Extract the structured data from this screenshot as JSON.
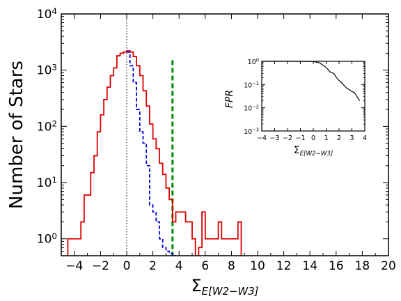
{
  "chart_data": [
    {
      "type": "histogram",
      "ylabel": "Number of Stars",
      "xlabel": {
        "main": "Σ",
        "sub": "E[W2−W3]"
      },
      "xlim": [
        -5,
        20
      ],
      "ylim_log": [
        0.5,
        10000
      ],
      "yscale": "log",
      "xticks": [
        -4,
        -2,
        0,
        2,
        4,
        6,
        8,
        10,
        12,
        14,
        16,
        18,
        20
      ],
      "xtick_labels": [
        "−4",
        "−2",
        "0",
        "2",
        "4",
        "6",
        "8",
        "10",
        "12",
        "14",
        "16",
        "18",
        "20"
      ],
      "yticks": [
        1,
        10,
        100,
        1000,
        10000
      ],
      "ytick_labels": [
        {
          "b": "10",
          "e": "0"
        },
        {
          "b": "10",
          "e": "1"
        },
        {
          "b": "10",
          "e": "2"
        },
        {
          "b": "10",
          "e": "3"
        },
        {
          "b": "10",
          "e": "4"
        }
      ],
      "bin_width": 0.25,
      "series": [
        {
          "style": "red-solid-step",
          "color": "#dd0000",
          "bins_start": -4.5,
          "counts": [
            1,
            1,
            1,
            1,
            2,
            6,
            6,
            15,
            30,
            80,
            160,
            300,
            500,
            800,
            1100,
            1800,
            2000,
            2100,
            2200,
            2100,
            1750,
            1200,
            800,
            430,
            230,
            110,
            60,
            40,
            22,
            14,
            8,
            5,
            2,
            3,
            3,
            3,
            2,
            2,
            1,
            0,
            0.7,
            3,
            1,
            1,
            1,
            1,
            2,
            1,
            1,
            1,
            1,
            1,
            2,
            0,
            0,
            0,
            0,
            0,
            0,
            0,
            0,
            0,
            0,
            0,
            0,
            0,
            0,
            0,
            0,
            0,
            0,
            0,
            0,
            0,
            0,
            0,
            0,
            0,
            0,
            0,
            0,
            0,
            0,
            0,
            0,
            0,
            0,
            0,
            0,
            0,
            0,
            0,
            0,
            0,
            0,
            0,
            0,
            0,
            0,
            0,
            0,
            0,
            0,
            0,
            0,
            0,
            0,
            0
          ]
        },
        {
          "style": "blue-dashed-step",
          "color": "#0000dd",
          "bins_start": 0,
          "counts": [
            2100,
            1200,
            600,
            200,
            80,
            50,
            20,
            4,
            3,
            2,
            1,
            0.7,
            0.6,
            0.55,
            0.5
          ]
        }
      ],
      "annotations": [
        {
          "type": "vline",
          "x": 0,
          "style": "black-dotted"
        },
        {
          "type": "vline",
          "x": 3.5,
          "style": "green-dashed",
          "color": "#008800",
          "y_top": 1500
        }
      ]
    },
    {
      "type": "line",
      "inset": true,
      "ylabel": "FPR",
      "xlabel": {
        "main": "Σ",
        "sub": "E[W2−W3]"
      },
      "xlim": [
        -4,
        4
      ],
      "ylim_log": [
        0.001,
        1
      ],
      "xticks": [
        -4,
        -3,
        -2,
        -1,
        0,
        1,
        2,
        3,
        4
      ],
      "xtick_labels": [
        "−4",
        "−3",
        "−2",
        "−1",
        "0",
        "1",
        "2",
        "3",
        "4"
      ],
      "yticks": [
        0.001,
        0.01,
        0.1,
        1
      ],
      "ytick_labels": [
        {
          "b": "10",
          "e": "−3"
        },
        {
          "b": "10",
          "e": "−2"
        },
        {
          "b": "10",
          "e": "−1"
        },
        {
          "b": "10",
          "e": "0"
        }
      ],
      "x": [
        -4,
        -3,
        -2,
        -1,
        0,
        0.5,
        1.0,
        1.3,
        1.6,
        1.8,
        2.0,
        2.2,
        2.4,
        2.6,
        2.8,
        3.0,
        3.2,
        3.4,
        3.6
      ],
      "y": [
        1,
        1,
        1,
        1,
        0.99,
        0.85,
        0.55,
        0.35,
        0.3,
        0.2,
        0.15,
        0.12,
        0.09,
        0.07,
        0.06,
        0.05,
        0.045,
        0.03,
        0.02
      ]
    }
  ]
}
